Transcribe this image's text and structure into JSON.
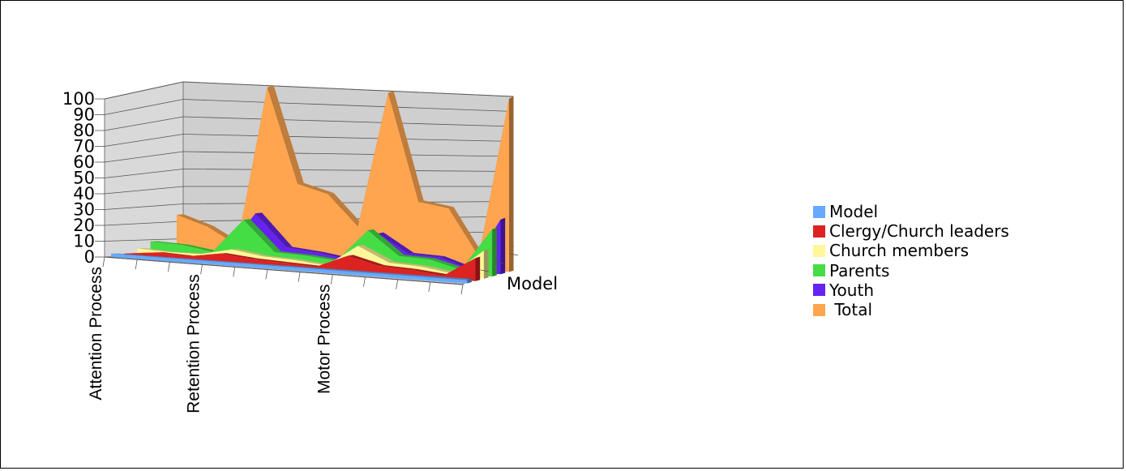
{
  "chart_data": {
    "type": "area",
    "subtype": "3d-area",
    "categories": [
      "Attention Process",
      "",
      "",
      "Retention Process",
      "",
      "",
      "",
      "Motor Process",
      "",
      "",
      "",
      ""
    ],
    "ylim": [
      0,
      100
    ],
    "yticks": [
      "0",
      "10",
      "20",
      "30",
      "40",
      "50",
      "60",
      "70",
      "80",
      "90",
      "100"
    ],
    "depth_axis_label": "Model",
    "grid": true,
    "legend_position": "right",
    "series": [
      {
        "name": "Model",
        "color": "#66AAFF",
        "values": [
          2,
          2,
          2,
          2,
          2,
          2,
          2,
          2,
          2,
          2,
          2,
          2
        ]
      },
      {
        "name": "Clergy/Church leaders",
        "color": "#DD2222",
        "values": [
          2,
          4,
          3,
          6,
          4,
          3,
          2,
          10,
          5,
          4,
          2,
          14
        ]
      },
      {
        "name": "Church members",
        "color": "#FFF799",
        "values": [
          5,
          4,
          4,
          8,
          5,
          4,
          2,
          15,
          6,
          5,
          2,
          17
        ]
      },
      {
        "name": "Parents",
        "color": "#44DD44",
        "values": [
          9,
          8,
          5,
          25,
          7,
          6,
          4,
          23,
          9,
          8,
          3,
          28
        ]
      },
      {
        "name": "Youth",
        "color": "#6622EE",
        "values": [
          6,
          5,
          4,
          28,
          9,
          7,
          4,
          20,
          9,
          8,
          2,
          32
        ]
      },
      {
        "name": " Total",
        "color": "#FFA54F",
        "values": [
          24,
          18,
          8,
          100,
          45,
          40,
          22,
          100,
          38,
          35,
          8,
          100
        ]
      }
    ]
  }
}
